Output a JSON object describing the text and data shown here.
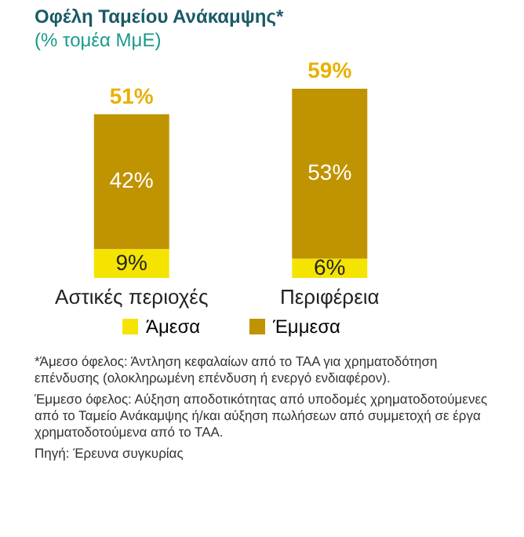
{
  "chart_data": {
    "type": "bar",
    "title": "Οφέλη Ταμείου Ανάκαμψης*",
    "subtitle": "(% τομέα ΜμΕ)",
    "categories": [
      "Αστικές περιοχές",
      "Περιφέρεια"
    ],
    "stacked": true,
    "series": [
      {
        "name": "Άμεσα",
        "color": "#f5e400",
        "values": [
          9,
          6
        ],
        "value_labels": [
          "9%",
          "6%"
        ]
      },
      {
        "name": "Έμμεσα",
        "color": "#c09300",
        "values": [
          42,
          53
        ],
        "value_labels": [
          "42%",
          "53%"
        ]
      }
    ],
    "totals": [
      "51%",
      "59%"
    ],
    "legend": "bottom",
    "annotations": [
      "*Άμεσο όφελος: Άντληση κεφαλαίων από το ΤΑΑ για χρηματοδότηση επένδυσης (ολοκληρωμένη επένδυση ή ενεργό ενδιαφέρον).",
      "Έμμεσο όφελος: Αύξηση αποδοτικότητας από υποδομές χρηματοδοτούμενες από το Ταμείο Ανάκαμψης ή/και αύξηση πωλήσεων από συμμετοχή σε έργα χρηματοδοτούμενα από το ΤΑΑ.",
      "Πηγή: Έρευνα συγκυρίας"
    ]
  }
}
